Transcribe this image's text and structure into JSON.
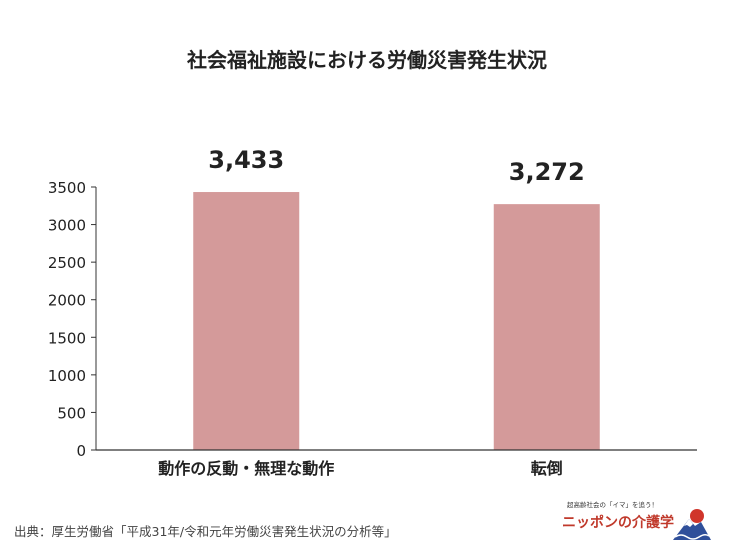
{
  "chart_data": {
    "type": "bar",
    "title": "社会福祉施設における労働災害発生状況",
    "categories": [
      "動作の反動・無理な動作",
      "転倒"
    ],
    "values": [
      3433,
      3272
    ],
    "data_labels": [
      "3,433",
      "3,272"
    ],
    "ylim": [
      0,
      3500
    ],
    "yticks": [
      0,
      500,
      1000,
      1500,
      2000,
      2500,
      3000,
      3500
    ],
    "xlabel": "",
    "ylabel": "",
    "grid": false,
    "legend": "none",
    "bar_color": "#d49a9a"
  },
  "source": "出典：厚生労働省「平成31年/令和元年労働災害発生状況の分析等」",
  "logo": {
    "tagline": "超高齢社会の「イマ」を追う！",
    "name": "ニッポンの介護学",
    "icon": "mount-fuji-sun-icon"
  }
}
